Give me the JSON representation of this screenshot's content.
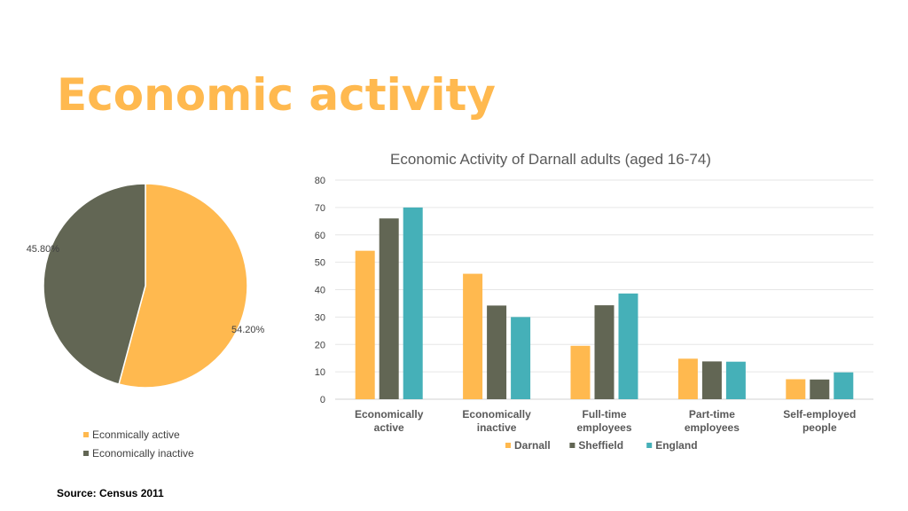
{
  "slide": {
    "title": "Economic activity",
    "source": "Source: Census 2011"
  },
  "colors": {
    "title": "#ffb94f",
    "darnall": "#ffb94f",
    "sheffield": "#626654",
    "england": "#45b0b8"
  },
  "chart_data": [
    {
      "type": "pie",
      "title": "",
      "slices": [
        {
          "label": "Econmically active",
          "value": 54.2,
          "display": "54.20%",
          "color": "#ffb94f"
        },
        {
          "label": "Economically inactive",
          "value": 45.8,
          "display": "45.80%",
          "color": "#626654"
        }
      ],
      "legend_position": "bottom"
    },
    {
      "type": "bar",
      "title": "Economic Activity of Darnall adults (aged 16-74)",
      "xlabel": "",
      "ylabel": "",
      "ylim": [
        0,
        80
      ],
      "yticks": [
        0,
        10,
        20,
        30,
        40,
        50,
        60,
        70,
        80
      ],
      "grid": true,
      "legend_position": "bottom",
      "categories": [
        [
          "Economically",
          "active"
        ],
        [
          "Economically",
          "inactive"
        ],
        [
          "Full-time",
          "employees"
        ],
        [
          "Part-time",
          "employees"
        ],
        [
          "Self-employed",
          "people"
        ]
      ],
      "series": [
        {
          "name": "Darnall",
          "color": "#ffb94f",
          "values": [
            54.2,
            45.8,
            19.5,
            14.8,
            7.3
          ]
        },
        {
          "name": "Sheffield",
          "color": "#626654",
          "values": [
            66,
            34.2,
            34.3,
            13.8,
            7.2
          ]
        },
        {
          "name": "England",
          "color": "#45b0b8",
          "values": [
            70,
            30,
            38.6,
            13.7,
            9.8
          ]
        }
      ]
    }
  ]
}
